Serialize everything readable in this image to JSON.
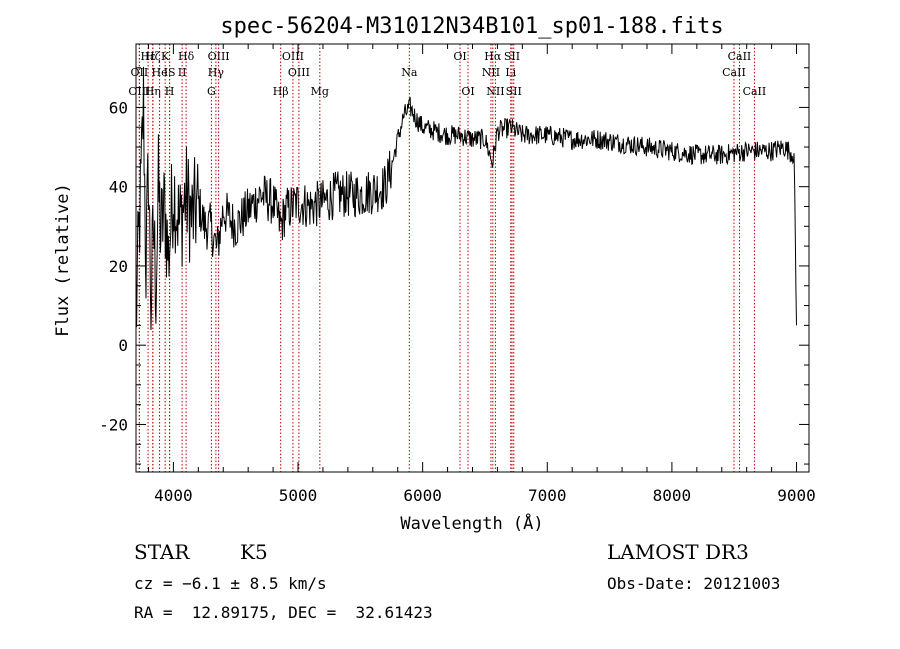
{
  "chart_data": {
    "type": "line",
    "title": "spec-56204-M31012N34B101_sp01-188.fits",
    "xlabel": "Wavelength (Å)",
    "ylabel": "Flux (relative)",
    "xlim": [
      3700,
      9100
    ],
    "ylim": [
      -32,
      76
    ],
    "xticks": [
      4000,
      5000,
      6000,
      7000,
      8000,
      9000
    ],
    "yticks": [
      -20,
      0,
      20,
      40,
      60
    ],
    "grid": false,
    "series": [
      {
        "name": "spectrum",
        "x": [
          3700,
          3720,
          3740,
          3760,
          3780,
          3800,
          3820,
          3840,
          3860,
          3880,
          3900,
          3930,
          3960,
          4000,
          4050,
          4100,
          4150,
          4200,
          4250,
          4300,
          4350,
          4400,
          4500,
          4600,
          4700,
          4800,
          4860,
          4900,
          5000,
          5100,
          5200,
          5300,
          5400,
          5500,
          5600,
          5700,
          5750,
          5800,
          5850,
          5900,
          5950,
          6000,
          6100,
          6200,
          6300,
          6400,
          6500,
          6560,
          6600,
          6700,
          6800,
          6900,
          7000,
          7200,
          7400,
          7600,
          7800,
          8000,
          8200,
          8400,
          8600,
          8800,
          8900,
          8980,
          9000
        ],
        "y": [
          5,
          25,
          40,
          62,
          20,
          45,
          10,
          30,
          15,
          40,
          28,
          35,
          22,
          40,
          30,
          38,
          32,
          36,
          30,
          30,
          24,
          34,
          30,
          34,
          38,
          36,
          30,
          34,
          36,
          35,
          36,
          38,
          38,
          38,
          39,
          40,
          45,
          52,
          58,
          60,
          57,
          55,
          54,
          53,
          53,
          52,
          52,
          46,
          54,
          55,
          53,
          53,
          53,
          52,
          52,
          51,
          50,
          49,
          48,
          48,
          49,
          49,
          50,
          48,
          5
        ]
      }
    ],
    "lines": [
      {
        "name": "Hε",
        "wave": 3797,
        "row": 1
      },
      {
        "name": "OII",
        "wave": 3727,
        "row": 2
      },
      {
        "name": "OIII",
        "wave": 3727,
        "row": 3
      },
      {
        "name": "Hζ",
        "wave": 3835,
        "row": 1
      },
      {
        "name": "He",
        "wave": 3889,
        "row": 2
      },
      {
        "name": "Hη",
        "wave": 3835,
        "row": 3
      },
      {
        "name": "K",
        "wave": 3934,
        "row": 1
      },
      {
        "name": "IS",
        "wave": 3970,
        "row": 2
      },
      {
        "name": "H",
        "wave": 3969,
        "row": 3
      },
      {
        "name": "Hδ",
        "wave": 4102,
        "row": 1
      },
      {
        "name": "II",
        "wave": 4070,
        "row": 2
      },
      {
        "name": "OIII",
        "wave": 4363,
        "row": 1
      },
      {
        "name": "Hγ",
        "wave": 4341,
        "row": 2
      },
      {
        "name": "G",
        "wave": 4305,
        "row": 3
      },
      {
        "name": "Hβ",
        "wave": 4861,
        "row": 3
      },
      {
        "name": "OIII",
        "wave": 4959,
        "row": 1
      },
      {
        "name": "OIII",
        "wave": 5007,
        "row": 2
      },
      {
        "name": "Mg",
        "wave": 5175,
        "row": 3
      },
      {
        "name": "Na",
        "wave": 5893,
        "row": 2
      },
      {
        "name": "OI",
        "wave": 6300,
        "row": 1
      },
      {
        "name": "OI",
        "wave": 6364,
        "row": 3
      },
      {
        "name": "Hα",
        "wave": 6563,
        "row": 1
      },
      {
        "name": "NII",
        "wave": 6548,
        "row": 2
      },
      {
        "name": "NII",
        "wave": 6584,
        "row": 3
      },
      {
        "name": "SII",
        "wave": 6717,
        "row": 1
      },
      {
        "name": "Li",
        "wave": 6707,
        "row": 2
      },
      {
        "name": "SII",
        "wave": 6731,
        "row": 3
      },
      {
        "name": "CaII",
        "wave": 8542,
        "row": 1
      },
      {
        "name": "CaII",
        "wave": 8498,
        "row": 2
      },
      {
        "name": "CaII",
        "wave": 8662,
        "row": 3
      }
    ]
  },
  "info": {
    "object_class": "STAR",
    "subclass": "K5",
    "survey": "LAMOST DR3",
    "cz": "cz = −6.1 ± 8.5 km/s",
    "obs_date": "Obs-Date: 20121003",
    "coords": "RA =  12.89175, DEC =  32.61423"
  },
  "colors": {
    "spectrum": "#000000",
    "line_markers": "#c00000",
    "axes": "#000000"
  }
}
